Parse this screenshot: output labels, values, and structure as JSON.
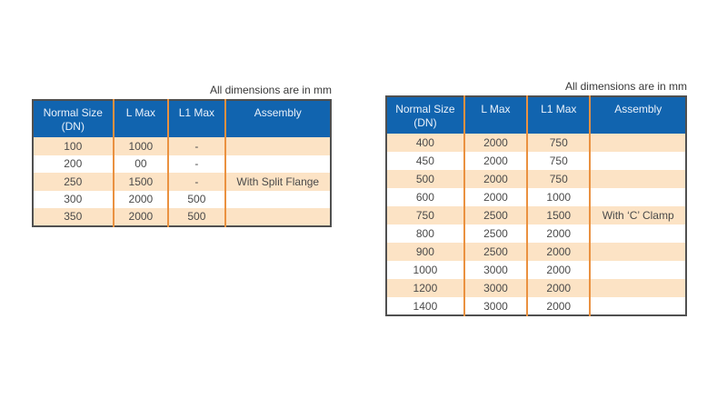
{
  "colors": {
    "header_bg": "#1164af",
    "header_text": "#e9f1fa",
    "row_stripe": "#fce3c5",
    "column_divider": "#ea9140",
    "table_border": "#505050",
    "body_text": "#4a4a4a",
    "caption_text": "#383838"
  },
  "tables": [
    {
      "caption": "All dimensions are in mm",
      "headers": {
        "col1_line1": "Normal Size",
        "col1_line2": "(DN)",
        "col2": "L Max",
        "col3": "L1 Max",
        "col4": "Assembly"
      },
      "rows": [
        [
          "100",
          "1000",
          "-",
          ""
        ],
        [
          "200",
          "00",
          "-",
          ""
        ],
        [
          "250",
          "1500",
          "-",
          "With Split Flange"
        ],
        [
          "300",
          "2000",
          "500",
          ""
        ],
        [
          "350",
          "2000",
          "500",
          ""
        ]
      ]
    },
    {
      "caption": "All dimensions are in mm",
      "headers": {
        "col1_line1": "Normal Size",
        "col1_line2": "(DN)",
        "col2": "L Max",
        "col3": "L1 Max",
        "col4": "Assembly"
      },
      "rows": [
        [
          "400",
          "2000",
          "750",
          ""
        ],
        [
          "450",
          "2000",
          "750",
          ""
        ],
        [
          "500",
          "2000",
          "750",
          ""
        ],
        [
          "600",
          "2000",
          "1000",
          ""
        ],
        [
          "750",
          "2500",
          "1500",
          "With ‘C’ Clamp"
        ],
        [
          "800",
          "2500",
          "2000",
          ""
        ],
        [
          "900",
          "2500",
          "2000",
          ""
        ],
        [
          "1000",
          "3000",
          "2000",
          ""
        ],
        [
          "1200",
          "3000",
          "2000",
          ""
        ],
        [
          "1400",
          "3000",
          "2000",
          ""
        ]
      ]
    }
  ]
}
